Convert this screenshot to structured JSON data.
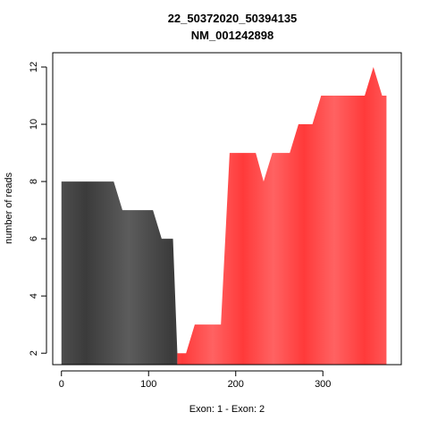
{
  "chart_data": {
    "type": "area",
    "title": "22_50372020_50394135",
    "subtitle": "NM_001242898",
    "xlabel": "Exon: 1 - Exon: 2",
    "ylabel": "number of reads",
    "xlim": [
      -10,
      390
    ],
    "ylim": [
      1.6,
      12.5
    ],
    "x_ticks": [
      0,
      100,
      200,
      300
    ],
    "y_ticks": [
      2,
      4,
      6,
      8,
      10,
      12
    ],
    "grid": false,
    "series": [
      {
        "name": "Exon: 1",
        "color": "#444444",
        "points": [
          [
            0,
            8
          ],
          [
            60,
            8
          ],
          [
            70,
            7
          ],
          [
            105,
            7
          ],
          [
            115,
            6
          ],
          [
            128,
            6
          ],
          [
            133,
            2
          ]
        ]
      },
      {
        "name": "Exon: 2",
        "color": "#ff4040",
        "points": [
          [
            133,
            2
          ],
          [
            143,
            2
          ],
          [
            153,
            3
          ],
          [
            183,
            3
          ],
          [
            193,
            9
          ],
          [
            223,
            9
          ],
          [
            232,
            8
          ],
          [
            242,
            9
          ],
          [
            262,
            9
          ],
          [
            272,
            10
          ],
          [
            288,
            10
          ],
          [
            298,
            11
          ],
          [
            348,
            11
          ],
          [
            358,
            12
          ],
          [
            368,
            11
          ],
          [
            373,
            11
          ]
        ]
      }
    ]
  }
}
